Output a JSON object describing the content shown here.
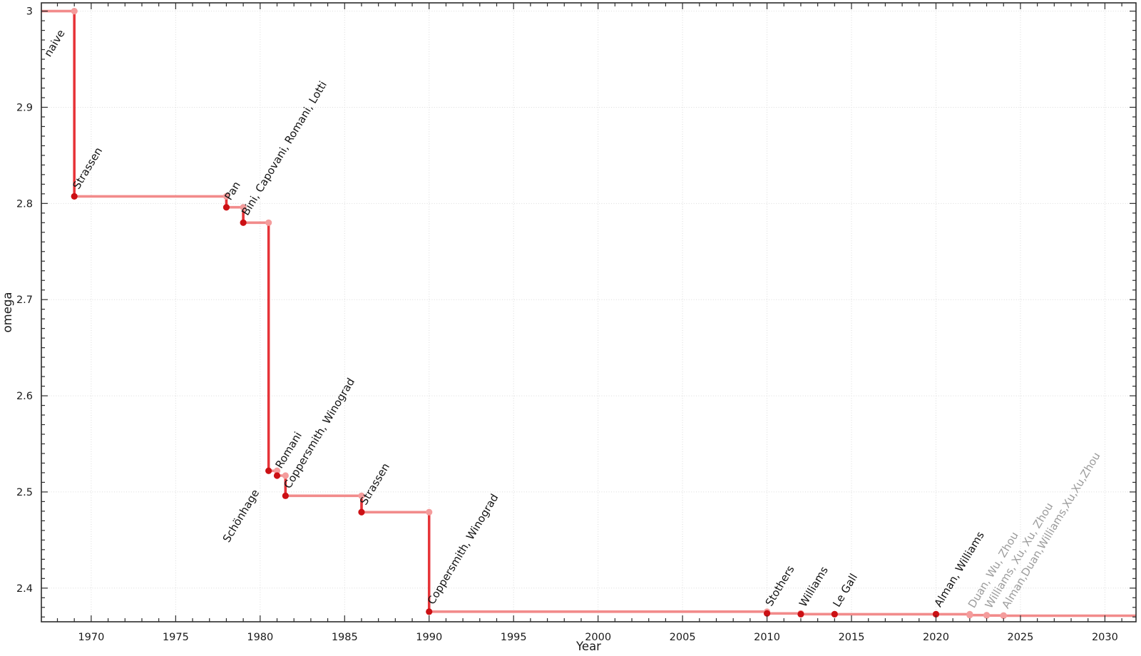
{
  "page": {
    "background": "#ffffff"
  },
  "chart_data": {
    "type": "line",
    "subtype": "step-post",
    "title": "",
    "xlabel": "Year",
    "ylabel": "omega",
    "xlim": [
      1967.05,
      2031.84
    ],
    "ylim": [
      2.365,
      3.0086
    ],
    "grid": true,
    "legend": "none",
    "x_major_ticks": [
      1970,
      1975,
      1980,
      1985,
      1990,
      1995,
      2000,
      2005,
      2010,
      2015,
      2020,
      2025,
      2030
    ],
    "x_minor_step": 1,
    "y_major_ticks": [
      {
        "v": 2.4,
        "label": "2.4"
      },
      {
        "v": 2.5,
        "label": "2.5"
      },
      {
        "v": 2.6,
        "label": "2.6"
      },
      {
        "v": 2.7,
        "label": "2.7"
      },
      {
        "v": 2.8,
        "label": "2.8"
      },
      {
        "v": 2.9,
        "label": "2.9"
      },
      {
        "v": 3.0,
        "label": "3"
      }
    ],
    "y_minor_step": 0.01,
    "start": {
      "label": "naive",
      "omega": 3.0,
      "tier": "major",
      "label_placement": "below"
    },
    "points": [
      {
        "year": 1969,
        "omega": 2.8074,
        "label": "Strassen",
        "tier": "major",
        "label_placement": "above"
      },
      {
        "year": 1978,
        "omega": 2.796,
        "label": "Pan",
        "tier": "major",
        "label_placement": "above"
      },
      {
        "year": 1979,
        "omega": 2.78,
        "label": "Bini, Capovani, Romani, Lotti",
        "tier": "major",
        "label_placement": "above"
      },
      {
        "year": 1980.5,
        "omega": 2.522,
        "label": "Schönhage",
        "tier": "major",
        "label_placement": "below"
      },
      {
        "year": 1981,
        "omega": 2.517,
        "label": "Romani",
        "tier": "major",
        "label_placement": "above"
      },
      {
        "year": 1981.5,
        "omega": 2.496,
        "label": "Coppersmith, Winograd",
        "tier": "major",
        "label_placement": "above"
      },
      {
        "year": 1986,
        "omega": 2.479,
        "label": "Strassen",
        "tier": "major",
        "label_placement": "above"
      },
      {
        "year": 1990,
        "omega": 2.3755,
        "label": "Coppersmith, Winograd",
        "tier": "major",
        "label_placement": "above"
      },
      {
        "year": 2010,
        "omega": 2.3737,
        "label": "Stothers",
        "tier": "major",
        "label_placement": "above"
      },
      {
        "year": 2012,
        "omega": 2.3729,
        "label": "Williams",
        "tier": "major",
        "label_placement": "above"
      },
      {
        "year": 2014,
        "omega": 2.3728639,
        "label": "Le Gall",
        "tier": "major",
        "label_placement": "above"
      },
      {
        "year": 2020,
        "omega": 2.3728596,
        "label": "Alman, Williams",
        "tier": "major",
        "label_placement": "above"
      },
      {
        "year": 2022,
        "omega": 2.37188,
        "label": "Duan, Wu, Zhou",
        "tier": "minor",
        "label_placement": "above"
      },
      {
        "year": 2023,
        "omega": 2.371552,
        "label": "Williams, Xu, Xu, Zhou",
        "tier": "minor",
        "label_placement": "above"
      },
      {
        "year": 2024,
        "omega": 2.371339,
        "label": "Alman,Duan,Williams,Xu,Xu,Zhou",
        "tier": "minor",
        "label_placement": "above"
      }
    ],
    "colors": {
      "step_line": "#F28B8B",
      "drop_line": "#E63338",
      "dot_major": "#CC1014",
      "dot_minor": "#F49C9C",
      "label_major": "#141414",
      "label_minor": "#9C9C9C",
      "grid": "#DBDBDB",
      "axis": "#2B2B2B",
      "tick_label": "#1A1A1A"
    }
  }
}
